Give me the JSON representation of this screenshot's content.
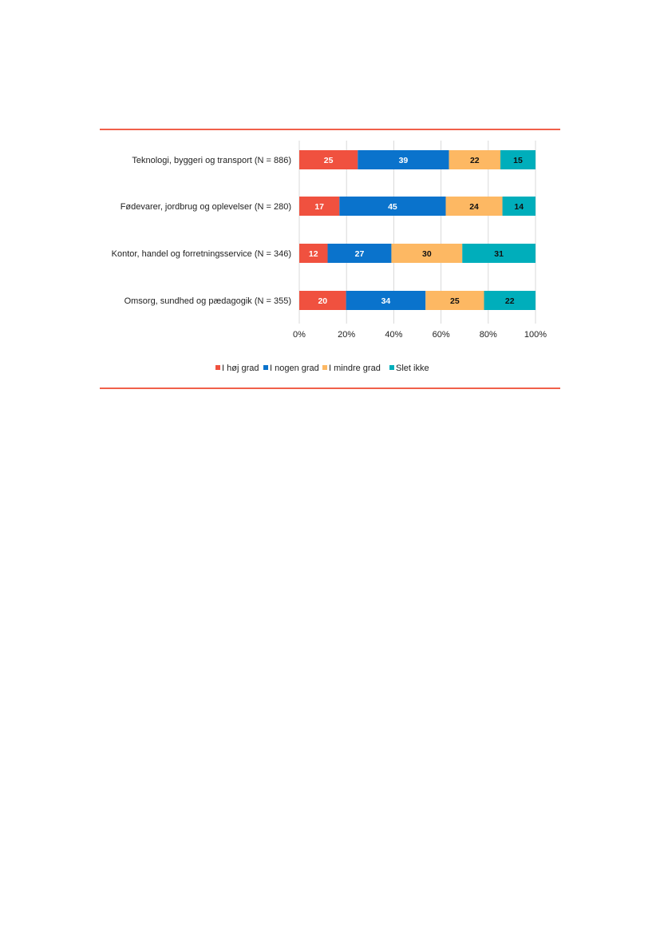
{
  "colors": {
    "rule": "#f0604a",
    "grid": "#d9d9d9"
  },
  "chart_data": {
    "type": "bar",
    "orientation": "horizontal",
    "stacked": "percent",
    "title": "",
    "xlabel": "",
    "ylabel": "",
    "xlim": [
      0,
      100
    ],
    "x_ticks": [
      "0%",
      "20%",
      "40%",
      "60%",
      "80%",
      "100%"
    ],
    "grid": true,
    "legend_position": "bottom",
    "categories": [
      "Teknologi, byggeri og transport (N = 886)",
      "Fødevarer, jordbrug og oplevelser (N = 280)",
      "Kontor, handel og forretningsservice (N = 346)",
      "Omsorg, sundhed og pædagogik (N = 355)"
    ],
    "series": [
      {
        "name": "I høj grad",
        "color": "#f0513f",
        "label_color": "#ffffff",
        "values": [
          25,
          17,
          12,
          20
        ]
      },
      {
        "name": "I nogen grad",
        "color": "#0a73cc",
        "label_color": "#ffffff",
        "values": [
          39,
          45,
          27,
          34
        ]
      },
      {
        "name": "I mindre grad",
        "color": "#fdb863",
        "label_color": "#111111",
        "values": [
          22,
          24,
          30,
          25
        ]
      },
      {
        "name": "Slet ikke",
        "color": "#00aebb",
        "label_color": "#111111",
        "values": [
          15,
          14,
          31,
          22
        ]
      }
    ]
  }
}
